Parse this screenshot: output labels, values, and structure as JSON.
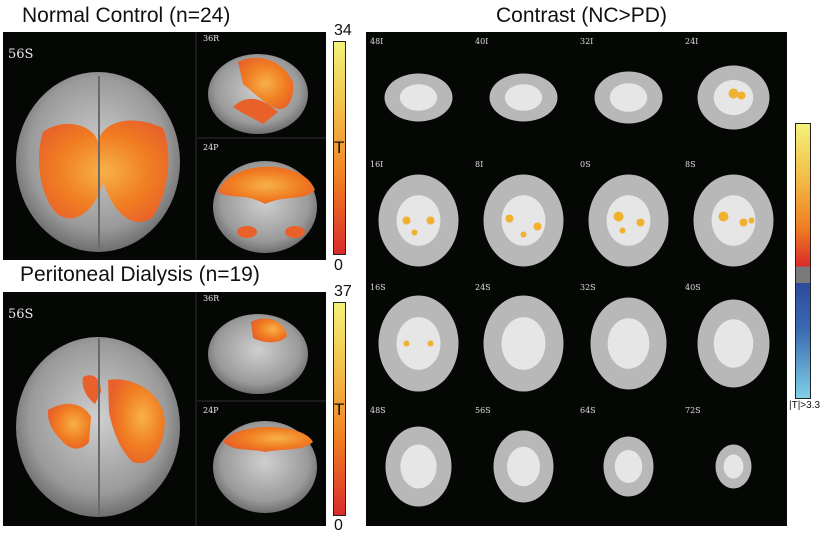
{
  "normal_control": {
    "title": "Normal Control (n=24)",
    "axial_label": "56S",
    "sagittal_label": "36R",
    "coronal_label": "24P",
    "colorbar": {
      "max": "34",
      "min": "0",
      "label": "T"
    }
  },
  "peritoneal_dialysis": {
    "title": "Peritoneal Dialysis (n=19)",
    "axial_label": "56S",
    "sagittal_label": "36R",
    "coronal_label": "24P",
    "colorbar": {
      "max": "37",
      "min": "0",
      "label": "T"
    }
  },
  "contrast": {
    "title": "Contrast (NC>PD)",
    "slices": [
      "48I",
      "40I",
      "32I",
      "24I",
      "16I",
      "8I",
      "0S",
      "8S",
      "16S",
      "24S",
      "32S",
      "40S",
      "48S",
      "56S",
      "64S",
      "72S"
    ],
    "threshold_label": "|T|>3.3"
  },
  "colors": {
    "hot_low": "#d92b2b",
    "hot_mid": "#f07d22",
    "hot_high": "#f4f27a",
    "cool_low": "#2e4a9c",
    "cool_high": "#7fd0e6"
  }
}
